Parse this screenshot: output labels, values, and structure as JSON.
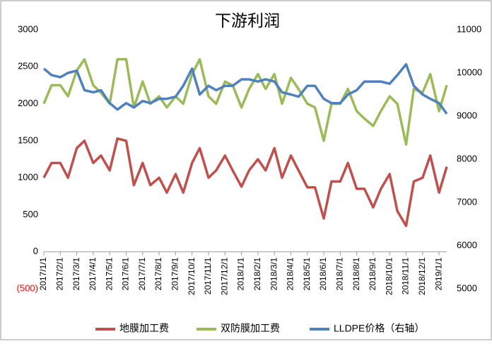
{
  "chart_data": {
    "type": "line",
    "title": "下游利润",
    "x": [
      "2017/1/1",
      "2017/1/15",
      "2017/2/1",
      "2017/2/15",
      "2017/3/1",
      "2017/3/15",
      "2017/4/1",
      "2017/4/15",
      "2017/5/1",
      "2017/5/15",
      "2017/6/1",
      "2017/6/15",
      "2017/7/1",
      "2017/7/15",
      "2017/8/1",
      "2017/8/15",
      "2017/9/1",
      "2017/9/15",
      "2017/10/1",
      "2017/10/15",
      "2017/11/1",
      "2017/11/15",
      "2017/12/1",
      "2017/12/15",
      "2018/1/1",
      "2018/1/15",
      "2018/2/1",
      "2018/2/15",
      "2018/3/1",
      "2018/3/15",
      "2018/4/1",
      "2018/4/15",
      "2018/5/1",
      "2018/5/15",
      "2018/6/1",
      "2018/6/15",
      "2018/7/1",
      "2018/7/15",
      "2018/8/1",
      "2018/8/15",
      "2018/9/1",
      "2018/9/15",
      "2018/10/1",
      "2018/10/15",
      "2018/11/1",
      "2018/11/15",
      "2018/12/1",
      "2018/12/15",
      "2019/1/1",
      "2019/1/15"
    ],
    "series": [
      {
        "name": "地膜加工费",
        "color": "#c0504d",
        "values": [
          1000,
          1200,
          1200,
          1000,
          1400,
          1500,
          1200,
          1300,
          1100,
          1530,
          1500,
          900,
          1200,
          900,
          1000,
          800,
          1050,
          800,
          1200,
          1400,
          1000,
          1100,
          1300,
          1100,
          880,
          1100,
          1250,
          1100,
          1400,
          1000,
          1300,
          1100,
          870,
          870,
          450,
          950,
          950,
          1200,
          850,
          850,
          600,
          850,
          1050,
          550,
          350,
          950,
          1000,
          1300,
          800,
          1150
        ]
      },
      {
        "name": "双防膜加工费",
        "color": "#9bbb59",
        "values": [
          2000,
          2250,
          2250,
          2100,
          2450,
          2600,
          2250,
          2150,
          2000,
          2600,
          2600,
          1950,
          2300,
          2000,
          2100,
          1950,
          2100,
          2000,
          2400,
          2600,
          2100,
          2000,
          2300,
          2250,
          1950,
          2200,
          2400,
          2200,
          2400,
          2000,
          2350,
          2200,
          2000,
          1950,
          1500,
          2000,
          2000,
          2200,
          1900,
          1800,
          1700,
          1900,
          2100,
          2000,
          1450,
          2200,
          2150,
          2400,
          1900,
          2250
        ]
      },
      {
        "name": "LLDPE价格（右轴）",
        "color": "#4f81bd",
        "axis": "y2",
        "values": [
          10100,
          9950,
          9900,
          10000,
          10050,
          9600,
          9550,
          9600,
          9300,
          9150,
          9300,
          9200,
          9350,
          9300,
          9400,
          9400,
          9450,
          9700,
          10100,
          9500,
          9700,
          9600,
          9700,
          9700,
          9850,
          9850,
          9800,
          9850,
          9800,
          9550,
          9500,
          9450,
          9700,
          9700,
          9400,
          9300,
          9300,
          9500,
          9600,
          9800,
          9800,
          9800,
          9750,
          9950,
          10200,
          9700,
          9500,
          9400,
          9300,
          9050
        ]
      }
    ],
    "xlim": [
      "2017/1/1",
      "2019/1/15"
    ],
    "xticks": [
      "2017/1/1",
      "2017/2/1",
      "2017/3/1",
      "2017/4/1",
      "2017/5/1",
      "2017/6/1",
      "2017/7/1",
      "2017/8/1",
      "2017/9/1",
      "2017/10/1",
      "2017/11/1",
      "2017/12/1",
      "2018/1/1",
      "2018/2/1",
      "2018/3/1",
      "2018/4/1",
      "2018/5/1",
      "2018/6/1",
      "2018/7/1",
      "2018/8/1",
      "2018/9/1",
      "2018/10/1",
      "2018/11/1",
      "2018/12/1",
      "2019/1/1"
    ],
    "ylim": [
      -500,
      3000
    ],
    "yticks": [
      {
        "value": -500,
        "label": "(500)",
        "color": "#ff0000"
      },
      0,
      500,
      1000,
      1500,
      2000,
      2500,
      3000
    ],
    "y2lim": [
      5000,
      11000
    ],
    "y2ticks": [
      5000,
      6000,
      7000,
      8000,
      9000,
      10000,
      11000
    ],
    "grid": false,
    "legend": "bottom"
  }
}
